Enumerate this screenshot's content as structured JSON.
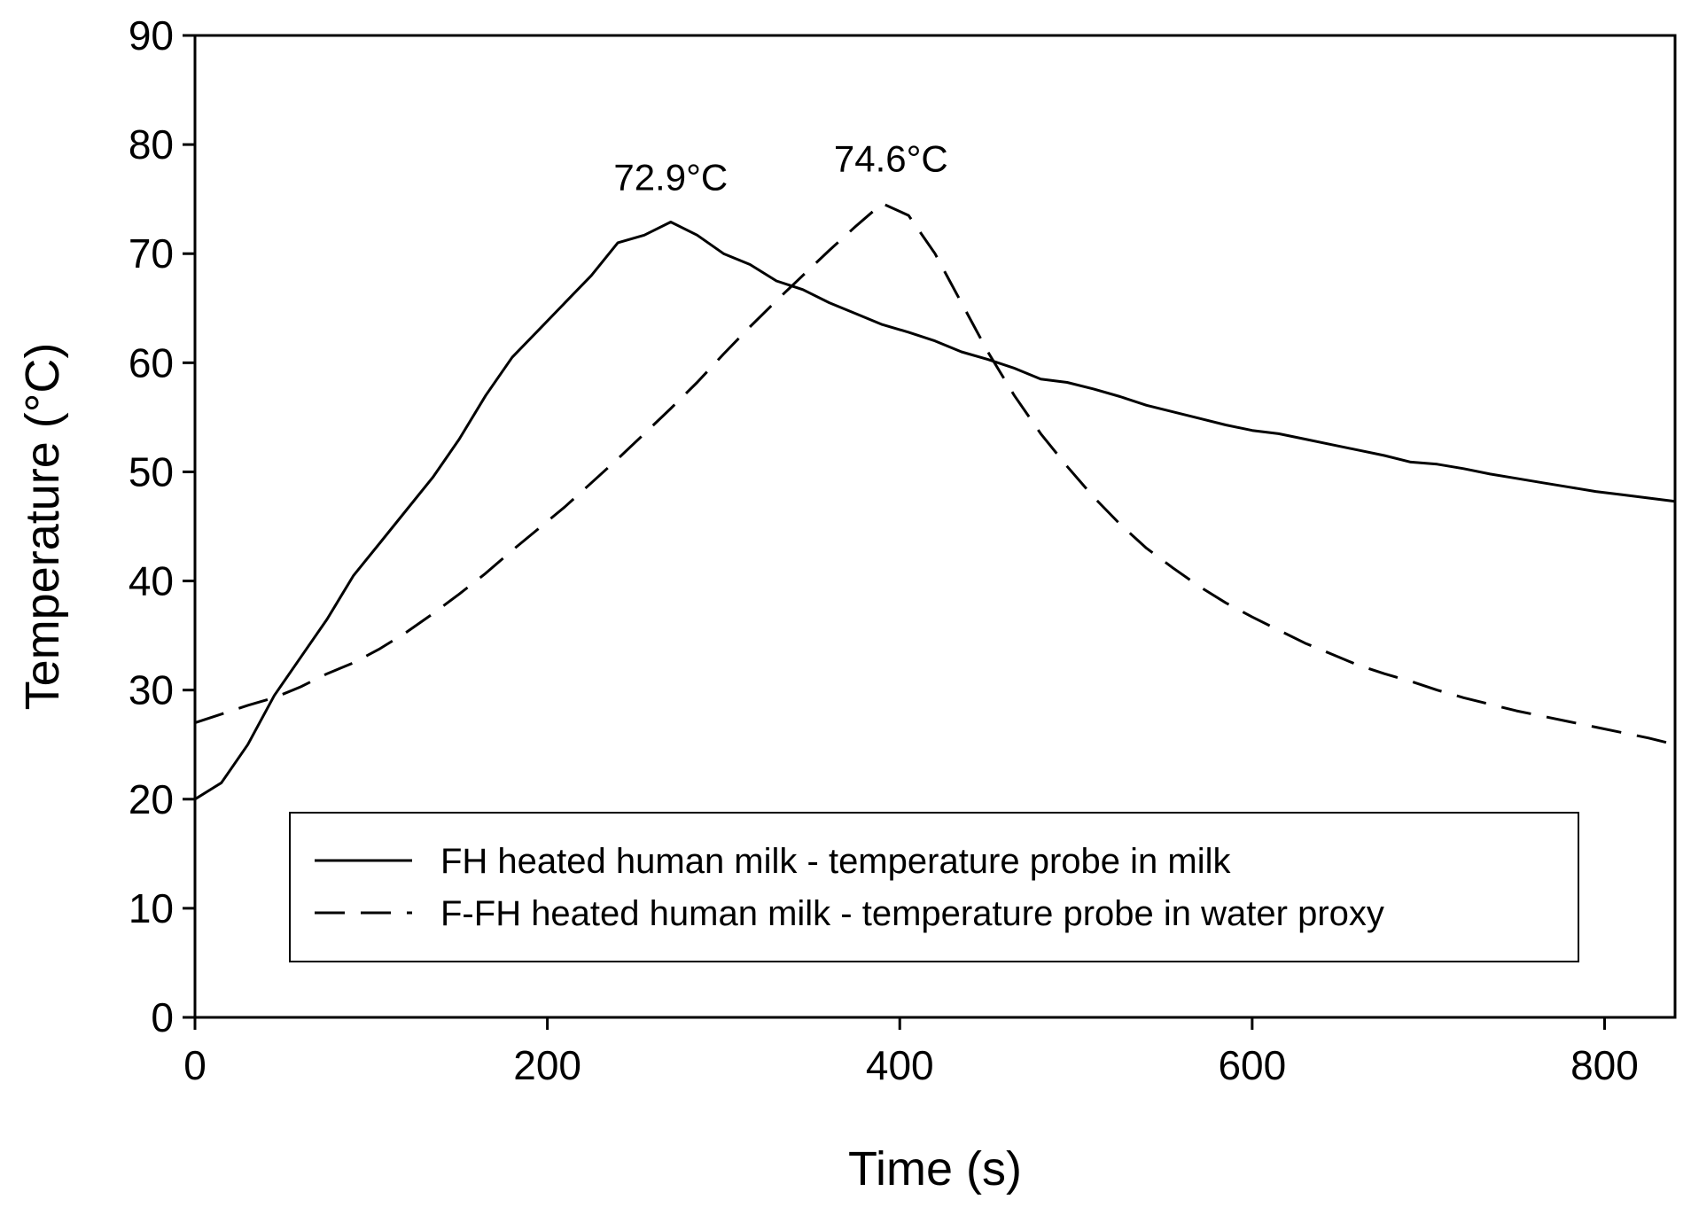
{
  "chart_data": {
    "type": "line",
    "xlabel": "Time (s)",
    "ylabel": "Temperature (°C)",
    "xlim": [
      0,
      840
    ],
    "ylim": [
      0,
      90
    ],
    "xticks": [
      0,
      200,
      400,
      600,
      800
    ],
    "yticks": [
      0,
      10,
      20,
      30,
      40,
      50,
      60,
      70,
      80,
      90
    ],
    "grid": false,
    "legend_position": "bottom-center",
    "series": [
      {
        "name": "FH heated human milk - temperature probe in milk",
        "style": "solid",
        "color": "#000000",
        "points": [
          [
            0,
            20.0
          ],
          [
            15,
            21.5
          ],
          [
            30,
            25.0
          ],
          [
            45,
            29.5
          ],
          [
            60,
            33.0
          ],
          [
            75,
            36.5
          ],
          [
            90,
            40.5
          ],
          [
            105,
            43.5
          ],
          [
            120,
            46.5
          ],
          [
            135,
            49.5
          ],
          [
            150,
            53.0
          ],
          [
            165,
            57.0
          ],
          [
            180,
            60.5
          ],
          [
            195,
            63.0
          ],
          [
            210,
            65.5
          ],
          [
            225,
            68.0
          ],
          [
            240,
            71.0
          ],
          [
            255,
            71.7
          ],
          [
            270,
            72.9
          ],
          [
            285,
            71.7
          ],
          [
            300,
            70.0
          ],
          [
            315,
            69.0
          ],
          [
            330,
            67.5
          ],
          [
            345,
            66.7
          ],
          [
            360,
            65.5
          ],
          [
            375,
            64.5
          ],
          [
            390,
            63.5
          ],
          [
            405,
            62.8
          ],
          [
            420,
            62.0
          ],
          [
            435,
            61.0
          ],
          [
            450,
            60.3
          ],
          [
            465,
            59.5
          ],
          [
            480,
            58.5
          ],
          [
            495,
            58.2
          ],
          [
            510,
            57.6
          ],
          [
            525,
            56.9
          ],
          [
            540,
            56.1
          ],
          [
            555,
            55.5
          ],
          [
            570,
            54.9
          ],
          [
            585,
            54.3
          ],
          [
            600,
            53.8
          ],
          [
            615,
            53.5
          ],
          [
            630,
            53.0
          ],
          [
            645,
            52.5
          ],
          [
            660,
            52.0
          ],
          [
            675,
            51.5
          ],
          [
            690,
            50.9
          ],
          [
            705,
            50.7
          ],
          [
            720,
            50.3
          ],
          [
            735,
            49.8
          ],
          [
            750,
            49.4
          ],
          [
            765,
            49.0
          ],
          [
            780,
            48.6
          ],
          [
            795,
            48.2
          ],
          [
            810,
            47.9
          ],
          [
            825,
            47.6
          ],
          [
            840,
            47.3
          ]
        ]
      },
      {
        "name": "F-FH heated human milk - temperature probe in water proxy",
        "style": "dashed",
        "color": "#000000",
        "points": [
          [
            0,
            27.0
          ],
          [
            15,
            27.8
          ],
          [
            30,
            28.6
          ],
          [
            45,
            29.3
          ],
          [
            60,
            30.3
          ],
          [
            75,
            31.5
          ],
          [
            90,
            32.5
          ],
          [
            105,
            33.8
          ],
          [
            120,
            35.3
          ],
          [
            135,
            37.0
          ],
          [
            150,
            38.8
          ],
          [
            165,
            40.7
          ],
          [
            180,
            42.8
          ],
          [
            195,
            44.8
          ],
          [
            210,
            46.8
          ],
          [
            225,
            49.0
          ],
          [
            240,
            51.2
          ],
          [
            255,
            53.5
          ],
          [
            270,
            55.8
          ],
          [
            285,
            58.2
          ],
          [
            300,
            60.8
          ],
          [
            315,
            63.3
          ],
          [
            330,
            65.7
          ],
          [
            345,
            68.0
          ],
          [
            360,
            70.3
          ],
          [
            375,
            72.5
          ],
          [
            390,
            74.6
          ],
          [
            405,
            73.5
          ],
          [
            420,
            70.0
          ],
          [
            435,
            65.5
          ],
          [
            450,
            61.0
          ],
          [
            465,
            57.0
          ],
          [
            480,
            53.5
          ],
          [
            495,
            50.5
          ],
          [
            510,
            47.7
          ],
          [
            525,
            45.2
          ],
          [
            540,
            43.0
          ],
          [
            555,
            41.2
          ],
          [
            570,
            39.5
          ],
          [
            585,
            38.0
          ],
          [
            600,
            36.7
          ],
          [
            615,
            35.5
          ],
          [
            630,
            34.3
          ],
          [
            645,
            33.3
          ],
          [
            660,
            32.3
          ],
          [
            675,
            31.5
          ],
          [
            690,
            30.8
          ],
          [
            705,
            30.0
          ],
          [
            720,
            29.3
          ],
          [
            735,
            28.7
          ],
          [
            750,
            28.1
          ],
          [
            765,
            27.6
          ],
          [
            780,
            27.1
          ],
          [
            795,
            26.6
          ],
          [
            810,
            26.1
          ],
          [
            825,
            25.6
          ],
          [
            840,
            25.0
          ]
        ]
      }
    ],
    "annotations": [
      {
        "text": "72.9°C",
        "x": 270,
        "y": 72.9
      },
      {
        "text": "74.6°C",
        "x": 395,
        "y": 74.6
      }
    ]
  }
}
